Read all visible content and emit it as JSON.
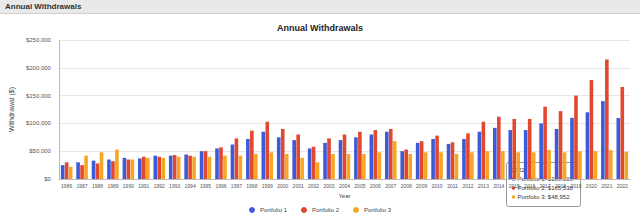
{
  "header": {
    "title": "Annual Withdrawals"
  },
  "chart_data": {
    "type": "bar",
    "title": "Annual Withdrawals",
    "x_label": "Year",
    "y_label": "Withdrawal ($)",
    "categories": [
      "1986",
      "1987",
      "1988",
      "1989",
      "1990",
      "1991",
      "1992",
      "1993",
      "1994",
      "1995",
      "1996",
      "1997",
      "1998",
      "1999",
      "2000",
      "2001",
      "2002",
      "2003",
      "2004",
      "2005",
      "2006",
      "2007",
      "2008",
      "2009",
      "2010",
      "2011",
      "2012",
      "2013",
      "2014",
      "2015",
      "2016",
      "2017",
      "2018",
      "2019",
      "2020",
      "2021",
      "2022"
    ],
    "series": [
      {
        "name": "Portfolio 1",
        "color": "#3f5ad6",
        "values": [
          25000,
          30000,
          33000,
          35000,
          38000,
          37000,
          42000,
          42000,
          44000,
          50000,
          55000,
          62000,
          72000,
          85000,
          75000,
          70000,
          55000,
          65000,
          70000,
          75000,
          80000,
          85000,
          50000,
          65000,
          72000,
          63000,
          72000,
          85000,
          92000,
          88000,
          88000,
          100000,
          90000,
          110000,
          120000,
          140000,
          109603
        ]
      },
      {
        "name": "Portfolio 2",
        "color": "#e2472f",
        "values": [
          30000,
          25000,
          28000,
          32000,
          35000,
          40000,
          40000,
          43000,
          42000,
          50000,
          57000,
          73000,
          87000,
          103000,
          90000,
          80000,
          58000,
          73000,
          80000,
          85000,
          88000,
          90000,
          53000,
          68000,
          78000,
          66000,
          82000,
          103000,
          112000,
          108000,
          108000,
          130000,
          122000,
          150000,
          178000,
          215000,
          165538
        ]
      },
      {
        "name": "Portfolio 3",
        "color": "#f6a623",
        "values": [
          22000,
          42000,
          48000,
          53000,
          35000,
          38000,
          38000,
          40000,
          40000,
          40000,
          42000,
          42000,
          45000,
          48000,
          45000,
          38000,
          30000,
          45000,
          45000,
          45000,
          48000,
          68000,
          45000,
          48000,
          48000,
          45000,
          48000,
          50000,
          50000,
          48000,
          48000,
          52000,
          48000,
          50000,
          50000,
          52000,
          48952
        ]
      }
    ],
    "ylim": [
      0,
      250000
    ],
    "yticks": [
      {
        "value": 0,
        "label": "$0"
      },
      {
        "value": 50000,
        "label": "$50,000"
      },
      {
        "value": 100000,
        "label": "$100,000"
      },
      {
        "value": 150000,
        "label": "$150,000"
      },
      {
        "value": 200000,
        "label": "$200,000"
      },
      {
        "value": 250000,
        "label": "$250,000"
      }
    ],
    "grid": true,
    "legend": "bottom",
    "tooltip": {
      "title": "2022",
      "lines": [
        "Portfolio 1: $109,603",
        "Portfolio 2: $165,538",
        "Portfolio 3: $48,952"
      ]
    }
  }
}
